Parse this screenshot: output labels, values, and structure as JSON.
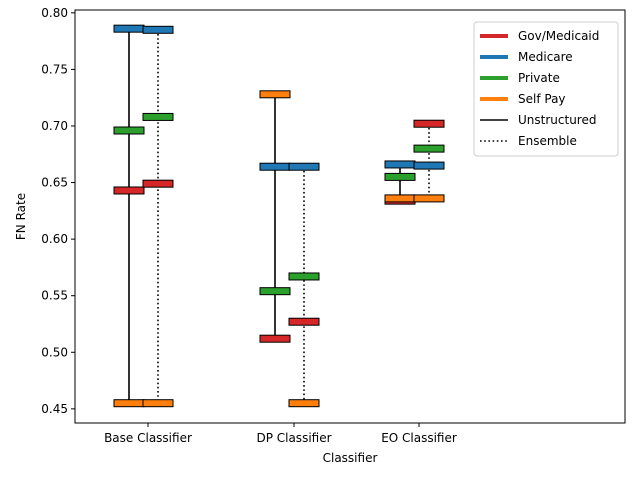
{
  "chart_data": {
    "type": "scatter",
    "xlabel": "Classifier",
    "ylabel": "FN Rate",
    "ylim": [
      0.4375,
      0.8025
    ],
    "categories": [
      "Base Classifier",
      "DP Classifier",
      "EO Classifier"
    ],
    "yticks": [
      "0.45",
      "0.50",
      "0.55",
      "0.60",
      "0.65",
      "0.70",
      "0.75",
      "0.80"
    ],
    "ytick_values": [
      0.45,
      0.5,
      0.55,
      0.6,
      0.65,
      0.7,
      0.75,
      0.8
    ],
    "groups": [
      {
        "name": "Gov/Medicaid",
        "color": "#d62728"
      },
      {
        "name": "Medicare",
        "color": "#1f77b4"
      },
      {
        "name": "Private",
        "color": "#2ca02c"
      },
      {
        "name": "Self Pay",
        "color": "#ff7f0e"
      }
    ],
    "series": [
      {
        "name": "Unstructured",
        "linestyle": "solid",
        "values": [
          {
            "Gov/Medicaid": 0.643,
            "Medicare": 0.786,
            "Private": 0.696,
            "Self Pay": 0.455
          },
          {
            "Gov/Medicaid": 0.512,
            "Medicare": 0.664,
            "Private": 0.554,
            "Self Pay": 0.728
          },
          {
            "Gov/Medicaid": 0.634,
            "Medicare": 0.666,
            "Private": 0.655,
            "Self Pay": 0.636
          }
        ]
      },
      {
        "name": "Ensemble",
        "linestyle": "dotted",
        "values": [
          {
            "Gov/Medicaid": 0.649,
            "Medicare": 0.785,
            "Private": 0.708,
            "Self Pay": 0.455
          },
          {
            "Gov/Medicaid": 0.527,
            "Medicare": 0.664,
            "Private": 0.567,
            "Self Pay": 0.455
          },
          {
            "Gov/Medicaid": 0.702,
            "Medicare": 0.665,
            "Private": 0.68,
            "Self Pay": 0.636
          }
        ]
      }
    ],
    "legend": {
      "position": "top-right",
      "entries": [
        "Gov/Medicaid",
        "Medicare",
        "Private",
        "Self Pay",
        "Unstructured",
        "Ensemble"
      ]
    }
  }
}
